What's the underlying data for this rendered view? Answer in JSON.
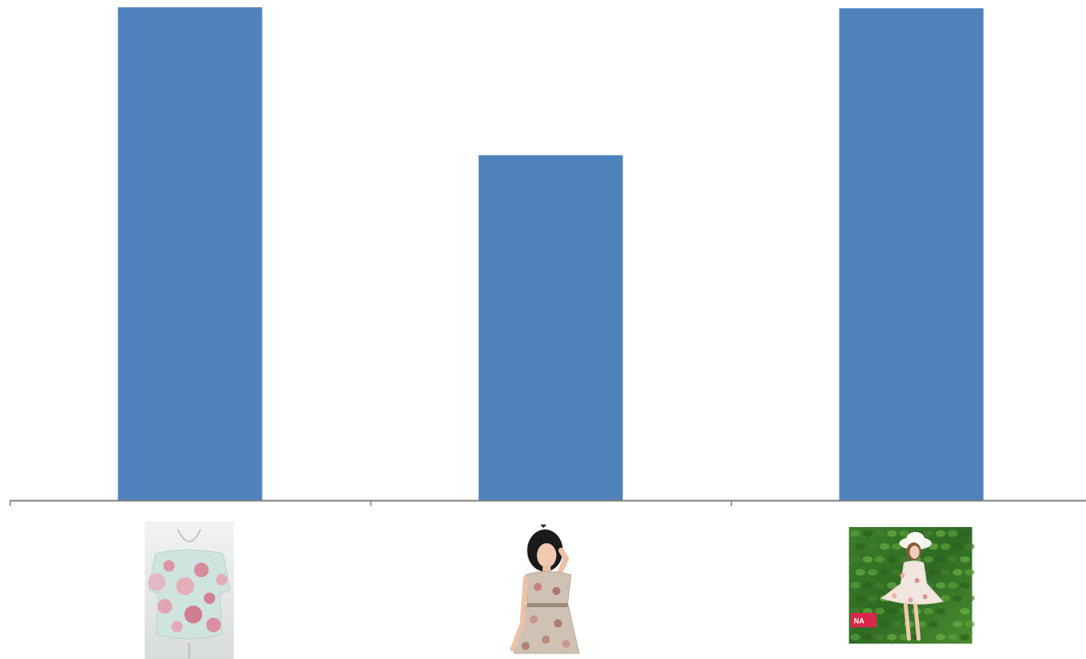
{
  "chart_data": {
    "type": "bar",
    "title": "",
    "xlabel": "",
    "ylabel": "",
    "categories": [
      {
        "label": "",
        "picture": "floral-blouse-on-mannequin",
        "value": 100
      },
      {
        "label": "",
        "picture": "woman-in-floral-dress",
        "value": 70
      },
      {
        "label": "",
        "picture": "woman-in-sun-hat-against-ivy-wall",
        "value": 99.8
      }
    ],
    "series": [
      {
        "values": [
          100,
          70,
          99.8
        ],
        "color": "#4F81BD"
      }
    ],
    "ylim": [
      0,
      100
    ],
    "grid": false,
    "legend": "none",
    "axis_color": "#7F7F7F",
    "category_labels_are_images": true
  }
}
